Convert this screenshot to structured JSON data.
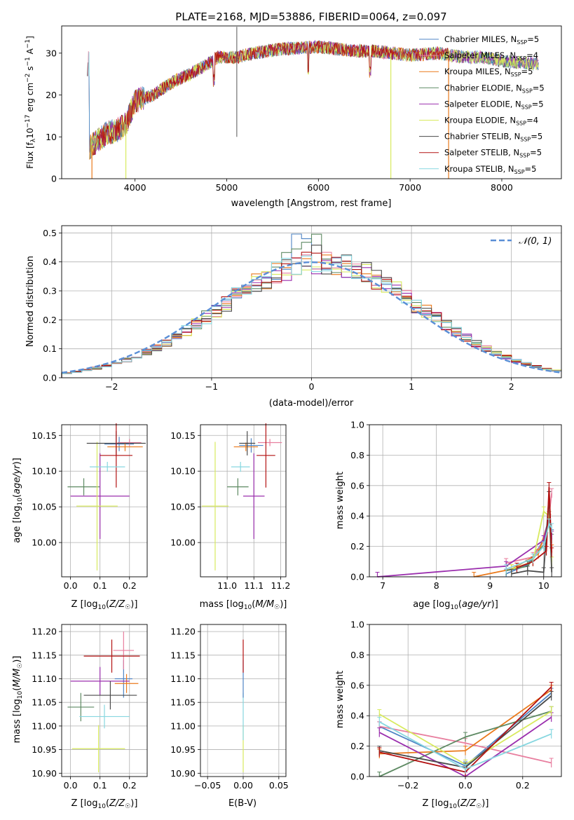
{
  "colors": {
    "series": [
      "#4f84c4",
      "#e87f9f",
      "#ea7a1c",
      "#5e8a63",
      "#9b2fae",
      "#d8ea5e",
      "#4a4a4a",
      "#b31212",
      "#87d7e0"
    ]
  },
  "legend_labels": [
    "Chabrier MILES, N_SSP=5",
    "Salpeter MILES, N_SSP=4",
    "Kroupa MILES, N_SSP=5",
    "Chabrier ELODIE, N_SSP=5",
    "Salpeter ELODIE, N_SSP=5",
    "Kroupa ELODIE, N_SSP=4",
    "Chabrier STELIB, N_SSP=5",
    "Salpeter STELIB, N_SSP=5",
    "Kroupa STELIB, N_SSP=5"
  ],
  "chart_data": [
    {
      "id": "spectrum",
      "type": "line",
      "title": "PLATE=2168, MJD=53886, FIBERID=0064, z=0.097",
      "xlabel": "wavelength [Angstrom, rest frame]",
      "ylabel": "Flux [f_λ 10^-17 erg cm^-2 s^-1 A^-1]",
      "xlim": [
        3200,
        8650
      ],
      "ylim": [
        0,
        36.5
      ],
      "xticks": [
        4000,
        5000,
        6000,
        7000,
        8000
      ],
      "yticks": [
        0,
        10,
        20,
        30
      ],
      "continuum": [
        [
          3500,
          7.5
        ],
        [
          3700,
          11
        ],
        [
          3800,
          11.5
        ],
        [
          3900,
          13
        ],
        [
          4000,
          18.5
        ],
        [
          4200,
          20
        ],
        [
          4400,
          23
        ],
        [
          4600,
          25
        ],
        [
          4800,
          27.5
        ],
        [
          4900,
          29
        ],
        [
          5100,
          29
        ],
        [
          5300,
          30
        ],
        [
          5600,
          31
        ],
        [
          6000,
          31.5
        ],
        [
          6400,
          30.5
        ],
        [
          6600,
          30.5
        ],
        [
          7000,
          29.5
        ],
        [
          7300,
          30
        ],
        [
          7600,
          29
        ],
        [
          7800,
          29
        ],
        [
          8050,
          28
        ],
        [
          8400,
          27.5
        ]
      ],
      "drops": [
        {
          "x": 3900,
          "series": 5
        },
        {
          "x": 6790,
          "series": 5
        },
        {
          "x": 7420,
          "series": 2
        },
        {
          "x": 3530,
          "series": 2
        }
      ],
      "legend": "upper right",
      "grid": false
    },
    {
      "id": "residuals",
      "type": "histogram",
      "xlabel": "(data-model)/error",
      "ylabel": "Normed distribution",
      "xlim": [
        -2.5,
        2.5
      ],
      "ylim": [
        0,
        0.525
      ],
      "xticks": [
        -2,
        -1,
        0,
        1,
        2
      ],
      "yticks": [
        0.0,
        0.1,
        0.2,
        0.3,
        0.4,
        0.5
      ],
      "bin_width": 0.1,
      "reference_curve": "N(0,1)",
      "legend_label": "𝒩(0, 1)",
      "legend": "upper right",
      "grid": true
    },
    {
      "id": "age_vs_Z",
      "type": "scatter",
      "xlabel": "Z [log10(Z/Z☉)]",
      "ylabel": "age [log10(age/yr)]",
      "xlim": [
        -0.03,
        0.26
      ],
      "ylim": [
        9.952,
        10.165
      ],
      "xticks": [
        0.0,
        0.1,
        0.2
      ],
      "yticks": [
        10.0,
        10.05,
        10.1,
        10.15
      ],
      "points": [
        {
          "s": 0,
          "x": 0.165,
          "y": 10.138,
          "xe": 0.05,
          "ye": 0.01
        },
        {
          "s": 1,
          "x": 0.2,
          "y": 10.14,
          "xe": 0.04,
          "ye": 0.005
        },
        {
          "s": 2,
          "x": 0.185,
          "y": 10.134,
          "xe": 0.06,
          "ye": 0.006
        },
        {
          "s": 3,
          "x": 0.045,
          "y": 10.078,
          "xe": 0.055,
          "ye": 0.012
        },
        {
          "s": 4,
          "x": 0.1,
          "y": 10.065,
          "xe": 0.1,
          "ye": 0.06
        },
        {
          "s": 5,
          "x": 0.09,
          "y": 10.051,
          "xe": 0.07,
          "ye": 0.09
        },
        {
          "s": 6,
          "x": 0.155,
          "y": 10.139,
          "xe": 0.1,
          "ye": 0.017
        },
        {
          "s": 7,
          "x": 0.155,
          "y": 10.122,
          "xe": 0.055,
          "ye": 0.045
        },
        {
          "s": 8,
          "x": 0.125,
          "y": 10.106,
          "xe": 0.06,
          "ye": 0.007
        }
      ],
      "grid": true
    },
    {
      "id": "age_vs_mass",
      "type": "scatter",
      "xlabel": "mass [log10(M/M☉)]",
      "ylabel": "",
      "xlim": [
        10.9,
        11.22
      ],
      "ylim": [
        9.952,
        10.165
      ],
      "xticks": [
        11.0,
        11.1,
        11.2
      ],
      "yticks": [
        10.0,
        10.05,
        10.1,
        10.15
      ],
      "points": [
        {
          "s": 0,
          "x": 11.09,
          "y": 10.136,
          "xe": 0.045,
          "ye": 0.01
        },
        {
          "s": 1,
          "x": 11.16,
          "y": 10.14,
          "xe": 0.045,
          "ye": 0.005
        },
        {
          "s": 2,
          "x": 11.07,
          "y": 10.134,
          "xe": 0.045,
          "ye": 0.006
        },
        {
          "s": 3,
          "x": 11.04,
          "y": 10.078,
          "xe": 0.04,
          "ye": 0.012
        },
        {
          "s": 4,
          "x": 11.1,
          "y": 10.065,
          "xe": 0.04,
          "ye": 0.06
        },
        {
          "s": 5,
          "x": 10.955,
          "y": 10.051,
          "xe": 0.05,
          "ye": 0.09
        },
        {
          "s": 6,
          "x": 11.075,
          "y": 10.139,
          "xe": 0.03,
          "ye": 0.017
        },
        {
          "s": 7,
          "x": 11.145,
          "y": 10.122,
          "xe": 0.035,
          "ye": 0.045
        },
        {
          "s": 8,
          "x": 11.05,
          "y": 10.106,
          "xe": 0.035,
          "ye": 0.007
        }
      ],
      "grid": true
    },
    {
      "id": "mass_weight_vs_age",
      "type": "line",
      "xlabel": "age [log10(age/yr)]",
      "ylabel": "mass weight",
      "xlim": [
        6.75,
        10.33
      ],
      "ylim": [
        0,
        1.0
      ],
      "xticks": [
        7,
        8,
        9,
        10
      ],
      "yticks": [
        0.0,
        0.2,
        0.4,
        0.6,
        0.8,
        1.0
      ],
      "series": [
        {
          "s": 0,
          "x": [
            9.3,
            9.7,
            10.0,
            10.1,
            10.15
          ],
          "y": [
            0.02,
            0.08,
            0.24,
            0.38,
            0.28
          ]
        },
        {
          "s": 1,
          "x": [
            9.3,
            9.8,
            10.05,
            10.15
          ],
          "y": [
            0.09,
            0.13,
            0.26,
            0.55
          ]
        },
        {
          "s": 2,
          "x": [
            8.7,
            9.4,
            9.9,
            10.1,
            10.15
          ],
          "y": [
            0.0,
            0.05,
            0.15,
            0.38,
            0.18
          ]
        },
        {
          "s": 3,
          "x": [
            9.3,
            9.7,
            10.0,
            10.1,
            10.15
          ],
          "y": [
            0.04,
            0.07,
            0.21,
            0.4,
            0.25
          ]
        },
        {
          "s": 4,
          "x": [
            6.9,
            9.3,
            10.0,
            10.1,
            10.15
          ],
          "y": [
            0.0,
            0.07,
            0.24,
            0.4,
            0.27
          ]
        },
        {
          "s": 5,
          "x": [
            9.4,
            9.8,
            10.0,
            10.1,
            10.15
          ],
          "y": [
            0.05,
            0.1,
            0.43,
            0.4,
            0.1
          ]
        },
        {
          "s": 6,
          "x": [
            9.4,
            9.7,
            10.0,
            10.1,
            10.15
          ],
          "y": [
            0.02,
            0.04,
            0.03,
            0.53,
            0.03
          ]
        },
        {
          "s": 7,
          "x": [
            9.5,
            9.8,
            10.05,
            10.1,
            10.15
          ],
          "y": [
            0.06,
            0.1,
            0.17,
            0.59,
            0.16
          ]
        },
        {
          "s": 8,
          "x": [
            9.3,
            9.8,
            10.0,
            10.1,
            10.15
          ],
          "y": [
            0.05,
            0.12,
            0.2,
            0.35,
            0.32
          ]
        }
      ],
      "grid": true
    },
    {
      "id": "mass_vs_Z",
      "type": "scatter",
      "xlabel": "Z [log10(Z/Z☉)]",
      "ylabel": "mass [log10(M/M☉)]",
      "xlim": [
        -0.03,
        0.26
      ],
      "ylim": [
        10.893,
        11.215
      ],
      "xticks": [
        0.0,
        0.1,
        0.2
      ],
      "yticks": [
        10.9,
        10.95,
        11.0,
        11.05,
        11.1,
        11.15,
        11.2
      ],
      "points": [
        {
          "s": 0,
          "x": 0.18,
          "y": 11.1,
          "xe": 0.03,
          "ye": 0.04
        },
        {
          "s": 1,
          "x": 0.18,
          "y": 11.16,
          "xe": 0.035,
          "ye": 0.04
        },
        {
          "s": 2,
          "x": 0.19,
          "y": 11.09,
          "xe": 0.04,
          "ye": 0.02
        },
        {
          "s": 3,
          "x": 0.035,
          "y": 11.04,
          "xe": 0.045,
          "ye": 0.03
        },
        {
          "s": 4,
          "x": 0.1,
          "y": 11.095,
          "xe": 0.1,
          "ye": 0.03
        },
        {
          "s": 5,
          "x": 0.095,
          "y": 10.952,
          "xe": 0.09,
          "ye": 0.05
        },
        {
          "s": 6,
          "x": 0.135,
          "y": 11.065,
          "xe": 0.09,
          "ye": 0.03
        },
        {
          "s": 7,
          "x": 0.14,
          "y": 11.148,
          "xe": 0.095,
          "ye": 0.035
        },
        {
          "s": 8,
          "x": 0.115,
          "y": 11.02,
          "xe": 0.085,
          "ye": 0.025
        }
      ],
      "grid": true
    },
    {
      "id": "mass_vs_EBV",
      "type": "scatter",
      "xlabel": "E(B-V)",
      "ylabel": "",
      "xlim": [
        -0.06,
        0.06
      ],
      "ylim": [
        10.893,
        11.215
      ],
      "xticks": [
        -0.05,
        0.0,
        0.05
      ],
      "yticks": [
        10.9,
        10.95,
        11.0,
        11.05,
        11.1,
        11.15,
        11.2
      ],
      "points": [
        {
          "s": 5,
          "x": 0.0,
          "y": 10.952,
          "xe": 0,
          "ye": 0.05
        },
        {
          "s": 8,
          "x": 0.0,
          "y": 11.02,
          "xe": 0,
          "ye": 0.05
        },
        {
          "s": 0,
          "x": 0.0,
          "y": 11.1,
          "xe": 0,
          "ye": 0.04
        },
        {
          "s": 7,
          "x": 0.0,
          "y": 11.148,
          "xe": 0,
          "ye": 0.035
        }
      ],
      "grid": true
    },
    {
      "id": "mass_weight_vs_Z",
      "type": "line",
      "xlabel": "Z [log10(Z/Z☉)]",
      "ylabel": "mass weight",
      "xlim": [
        -0.335,
        0.335
      ],
      "ylim": [
        0,
        1.0
      ],
      "xticks": [
        -0.2,
        0.0,
        0.2
      ],
      "yticks": [
        0.0,
        0.2,
        0.4,
        0.6,
        0.8,
        1.0
      ],
      "series": [
        {
          "s": 0,
          "x": [
            -0.3,
            0.0,
            0.3
          ],
          "y": [
            0.33,
            0.07,
            0.55
          ]
        },
        {
          "s": 1,
          "x": [
            -0.3,
            0.0,
            0.3
          ],
          "y": [
            0.33,
            0.22,
            0.09
          ]
        },
        {
          "s": 2,
          "x": [
            -0.3,
            0.0,
            0.3
          ],
          "y": [
            0.15,
            0.17,
            0.57
          ]
        },
        {
          "s": 3,
          "x": [
            -0.3,
            0.0,
            0.3
          ],
          "y": [
            0.0,
            0.26,
            0.43
          ]
        },
        {
          "s": 4,
          "x": [
            -0.3,
            0.0,
            0.3
          ],
          "y": [
            0.29,
            0.0,
            0.39
          ]
        },
        {
          "s": 5,
          "x": [
            -0.3,
            0.0,
            0.3
          ],
          "y": [
            0.41,
            0.08,
            0.43
          ]
        },
        {
          "s": 6,
          "x": [
            -0.3,
            0.0,
            0.3
          ],
          "y": [
            0.17,
            0.06,
            0.53
          ]
        },
        {
          "s": 7,
          "x": [
            -0.3,
            0.0,
            0.3
          ],
          "y": [
            0.16,
            0.03,
            0.59
          ]
        },
        {
          "s": 8,
          "x": [
            -0.3,
            0.0,
            0.3
          ],
          "y": [
            0.36,
            0.05,
            0.28
          ]
        }
      ],
      "grid": true
    }
  ]
}
